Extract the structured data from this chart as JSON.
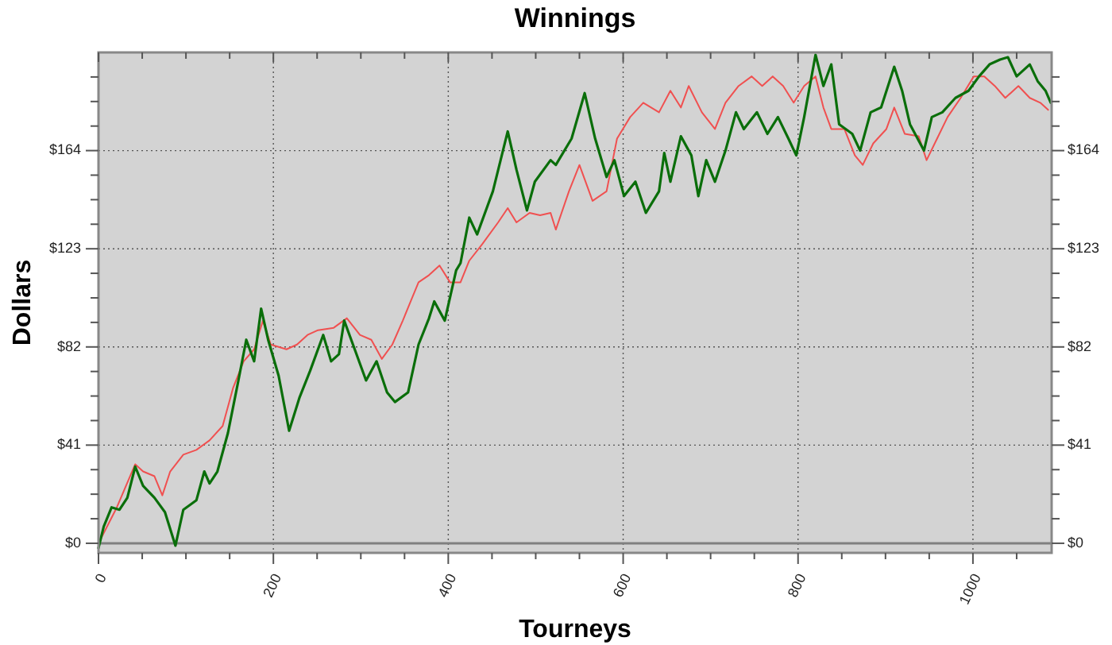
{
  "chart_data": {
    "type": "line",
    "title": "Winnings",
    "xlabel": "Tourneys",
    "ylabel": "Dollars",
    "xlim": [
      0,
      1090
    ],
    "ylim": [
      -4,
      205
    ],
    "y2lim": [
      -4,
      205
    ],
    "xticks": [
      0,
      {
        "value": 50,
        "label": null
      },
      {
        "value": 100,
        "label": null
      },
      {
        "value": 150,
        "label": null
      },
      200,
      {
        "value": 250,
        "label": null
      },
      {
        "value": 300,
        "label": null
      },
      {
        "value": 350,
        "label": null
      },
      400,
      {
        "value": 450,
        "label": null
      },
      {
        "value": 500,
        "label": null
      },
      {
        "value": 550,
        "label": null
      },
      600,
      {
        "value": 650,
        "label": null
      },
      {
        "value": 700,
        "label": null
      },
      {
        "value": 750,
        "label": null
      },
      800,
      {
        "value": 850,
        "label": null
      },
      {
        "value": 900,
        "label": null
      },
      {
        "value": 950,
        "label": null
      },
      1000,
      {
        "value": 1050,
        "label": null
      }
    ],
    "yticks": [
      {
        "value": 0,
        "label": "$0"
      },
      {
        "value": 10.25,
        "label": null
      },
      {
        "value": 20.5,
        "label": null
      },
      {
        "value": 30.75,
        "label": null
      },
      {
        "value": 41,
        "label": "$41"
      },
      {
        "value": 51.25,
        "label": null
      },
      {
        "value": 61.5,
        "label": null
      },
      {
        "value": 71.75,
        "label": null
      },
      {
        "value": 82,
        "label": "$82"
      },
      {
        "value": 92.25,
        "label": null
      },
      {
        "value": 102.5,
        "label": null
      },
      {
        "value": 112.75,
        "label": null
      },
      {
        "value": 123,
        "label": "$123"
      },
      {
        "value": 133.25,
        "label": null
      },
      {
        "value": 143.5,
        "label": null
      },
      {
        "value": 153.75,
        "label": null
      },
      {
        "value": 164,
        "label": "$164"
      },
      {
        "value": 174.25,
        "label": null
      },
      {
        "value": 184.5,
        "label": null
      },
      {
        "value": 194.75,
        "label": null
      }
    ],
    "y2ticks": [
      {
        "value": 0,
        "label": "$0"
      },
      {
        "value": 10.25,
        "label": null
      },
      {
        "value": 20.5,
        "label": null
      },
      {
        "value": 30.75,
        "label": null
      },
      {
        "value": 41,
        "label": "$41"
      },
      {
        "value": 51.25,
        "label": null
      },
      {
        "value": 61.5,
        "label": null
      },
      {
        "value": 71.75,
        "label": null
      },
      {
        "value": 82,
        "label": "$82"
      },
      {
        "value": 92.25,
        "label": null
      },
      {
        "value": 102.5,
        "label": null
      },
      {
        "value": 112.75,
        "label": null
      },
      {
        "value": 123,
        "label": "$123"
      },
      {
        "value": 133.25,
        "label": null
      },
      {
        "value": 143.5,
        "label": null
      },
      {
        "value": 153.75,
        "label": null
      },
      {
        "value": 164,
        "label": "$164"
      },
      {
        "value": 174.25,
        "label": null
      },
      {
        "value": 184.5,
        "label": null
      },
      {
        "value": 194.75,
        "label": null
      }
    ],
    "grid": true,
    "marker": "none",
    "line_style": "solid",
    "ref_lines": [
      {
        "axis": "y",
        "value": 0,
        "color": "#808080",
        "line_style": "solid"
      }
    ],
    "series": [
      {
        "color": "#f05050",
        "x": [
          0,
          21,
          42,
          51,
          64,
          73,
          82,
          97,
          112,
          127,
          142,
          154,
          166,
          178,
          188,
          197,
          215,
          227,
          239,
          251,
          269,
          284,
          299,
          312,
          324,
          336,
          348,
          357,
          366,
          378,
          390,
          402,
          414,
          424,
          439,
          457,
          468,
          478,
          493,
          505,
          517,
          523,
          538,
          550,
          565,
          581,
          593,
          608,
          623,
          641,
          654,
          666,
          675,
          690,
          705,
          717,
          732,
          747,
          759,
          771,
          783,
          795,
          807,
          820,
          829,
          838,
          853,
          865,
          874,
          886,
          901,
          910,
          922,
          938,
          947,
          959,
          971,
          986,
          1001,
          1013,
          1025,
          1037,
          1052,
          1065,
          1077,
          1086
        ],
        "values": [
          0,
          15,
          33,
          30,
          28,
          20,
          30,
          37,
          39,
          43,
          49,
          65,
          76,
          81,
          93,
          83,
          81,
          83,
          87,
          89,
          90,
          94,
          87,
          85,
          77,
          83,
          93,
          101,
          109,
          112,
          116,
          109,
          109,
          118,
          125,
          134,
          140,
          134,
          138,
          137,
          138,
          131,
          147,
          158,
          143,
          147,
          169,
          178,
          184,
          180,
          189,
          182,
          191,
          180,
          173,
          184,
          191,
          195,
          191,
          195,
          191,
          184,
          191,
          195,
          182,
          173,
          173,
          162,
          158,
          167,
          173,
          182,
          171,
          170,
          160,
          169,
          178,
          186,
          195,
          195,
          191,
          186,
          191,
          186,
          184,
          181
        ]
      },
      {
        "color": "#0a6e0a",
        "x": [
          0,
          6,
          15,
          24,
          33,
          42,
          51,
          64,
          76,
          88,
          97,
          112,
          121,
          127,
          136,
          148,
          160,
          169,
          178,
          186,
          194,
          206,
          218,
          230,
          242,
          257,
          266,
          275,
          281,
          293,
          306,
          318,
          330,
          339,
          354,
          366,
          378,
          384,
          396,
          409,
          414,
          424,
          433,
          451,
          468,
          478,
          490,
          499,
          517,
          523,
          541,
          556,
          568,
          581,
          590,
          601,
          614,
          626,
          641,
          647,
          654,
          666,
          678,
          686,
          695,
          705,
          717,
          729,
          738,
          753,
          765,
          777,
          789,
          798,
          807,
          820,
          829,
          838,
          847,
          862,
          871,
          883,
          895,
          910,
          919,
          928,
          944,
          953,
          965,
          980,
          995,
          1007,
          1019,
          1031,
          1040,
          1050,
          1065,
          1074,
          1083,
          1089
        ],
        "values": [
          -2,
          7,
          15,
          14,
          19,
          32,
          24,
          19,
          13,
          -1,
          14,
          18,
          30,
          25,
          30,
          46,
          68,
          85,
          76,
          98,
          85,
          70,
          47,
          61,
          72,
          87,
          76,
          79,
          93,
          81,
          68,
          76,
          63,
          59,
          63,
          83,
          94,
          101,
          93,
          114,
          117,
          136,
          129,
          147,
          172,
          156,
          139,
          151,
          160,
          158,
          169,
          188,
          169,
          153,
          160,
          145,
          151,
          138,
          147,
          163,
          151,
          170,
          162,
          145,
          160,
          151,
          164,
          180,
          173,
          180,
          171,
          178,
          169,
          162,
          178,
          204,
          191,
          200,
          175,
          171,
          164,
          180,
          182,
          199,
          189,
          175,
          164,
          178,
          180,
          186,
          189,
          195,
          200,
          202,
          203,
          195,
          200,
          193,
          189,
          184
        ]
      }
    ]
  }
}
